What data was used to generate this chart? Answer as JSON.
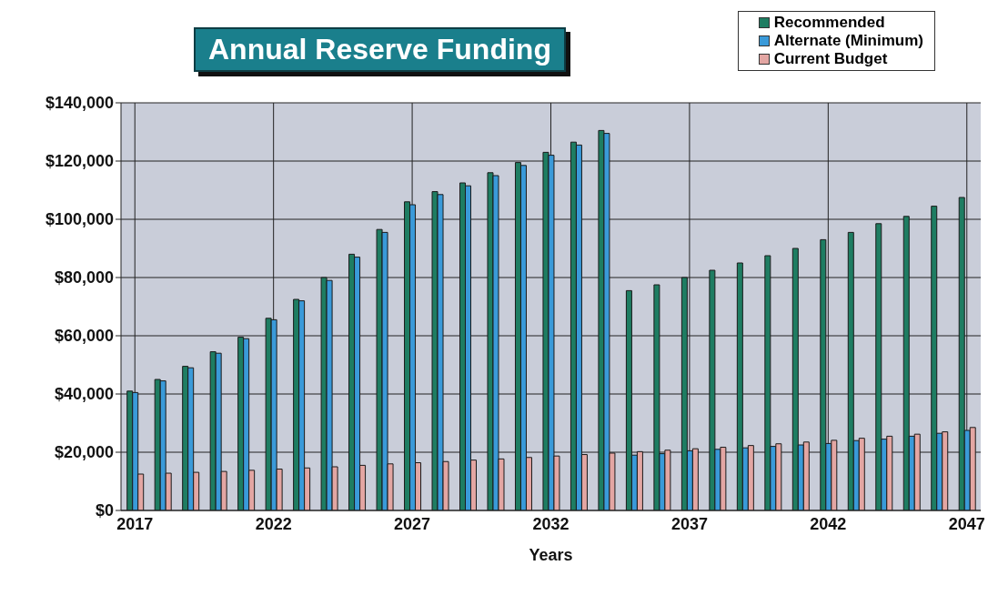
{
  "chart_data": {
    "type": "bar",
    "title": "Annual Reserve Funding",
    "xlabel": "Years",
    "categories": [
      "2017",
      null,
      null,
      null,
      null,
      "2022",
      null,
      null,
      null,
      null,
      "2027",
      null,
      null,
      null,
      null,
      "2032",
      null,
      null,
      null,
      null,
      "2037",
      null,
      null,
      null,
      null,
      "2042",
      null,
      null,
      null,
      null,
      "2047"
    ],
    "series": [
      {
        "name": "Recommended",
        "color": "#1e7d62",
        "values": [
          41000,
          45000,
          49500,
          54500,
          59500,
          66000,
          72500,
          80000,
          88000,
          96500,
          106000,
          109500,
          112500,
          116000,
          119500,
          123000,
          126500,
          130500,
          75500,
          77500,
          80000,
          82500,
          85000,
          87500,
          90000,
          93000,
          95500,
          98500,
          101000,
          104500,
          107500
        ]
      },
      {
        "name": "Alternate (Minimum)",
        "color": "#3a9ad9",
        "values": [
          40500,
          44500,
          49000,
          54000,
          59000,
          65500,
          72000,
          79000,
          87000,
          95500,
          105000,
          108500,
          111500,
          115000,
          118500,
          122000,
          125500,
          129500,
          19000,
          19500,
          20500,
          21000,
          21500,
          22000,
          22500,
          23000,
          24000,
          24500,
          25500,
          26500,
          27500
        ]
      },
      {
        "name": "Current Budget",
        "color": "#e3a6a3",
        "values": [
          12500,
          12800,
          13100,
          13400,
          13800,
          14200,
          14600,
          15000,
          15500,
          16000,
          16400,
          16800,
          17300,
          17700,
          18200,
          18700,
          19200,
          19700,
          20200,
          20700,
          21200,
          21700,
          22300,
          22900,
          23500,
          24100,
          24800,
          25500,
          26200,
          27000,
          28500
        ]
      }
    ],
    "ylim": [
      0,
      140000
    ],
    "yticks": [
      {
        "value": 0,
        "label": "$0"
      },
      {
        "value": 20000,
        "label": "$20,000"
      },
      {
        "value": 40000,
        "label": "$40,000"
      },
      {
        "value": 60000,
        "label": "$60,000"
      },
      {
        "value": 80000,
        "label": "$80,000"
      },
      {
        "value": 100000,
        "label": "$100,000"
      },
      {
        "value": 120000,
        "label": "$120,000"
      },
      {
        "value": 140000,
        "label": "$140,000"
      }
    ],
    "grid": true,
    "legend": "top right"
  }
}
